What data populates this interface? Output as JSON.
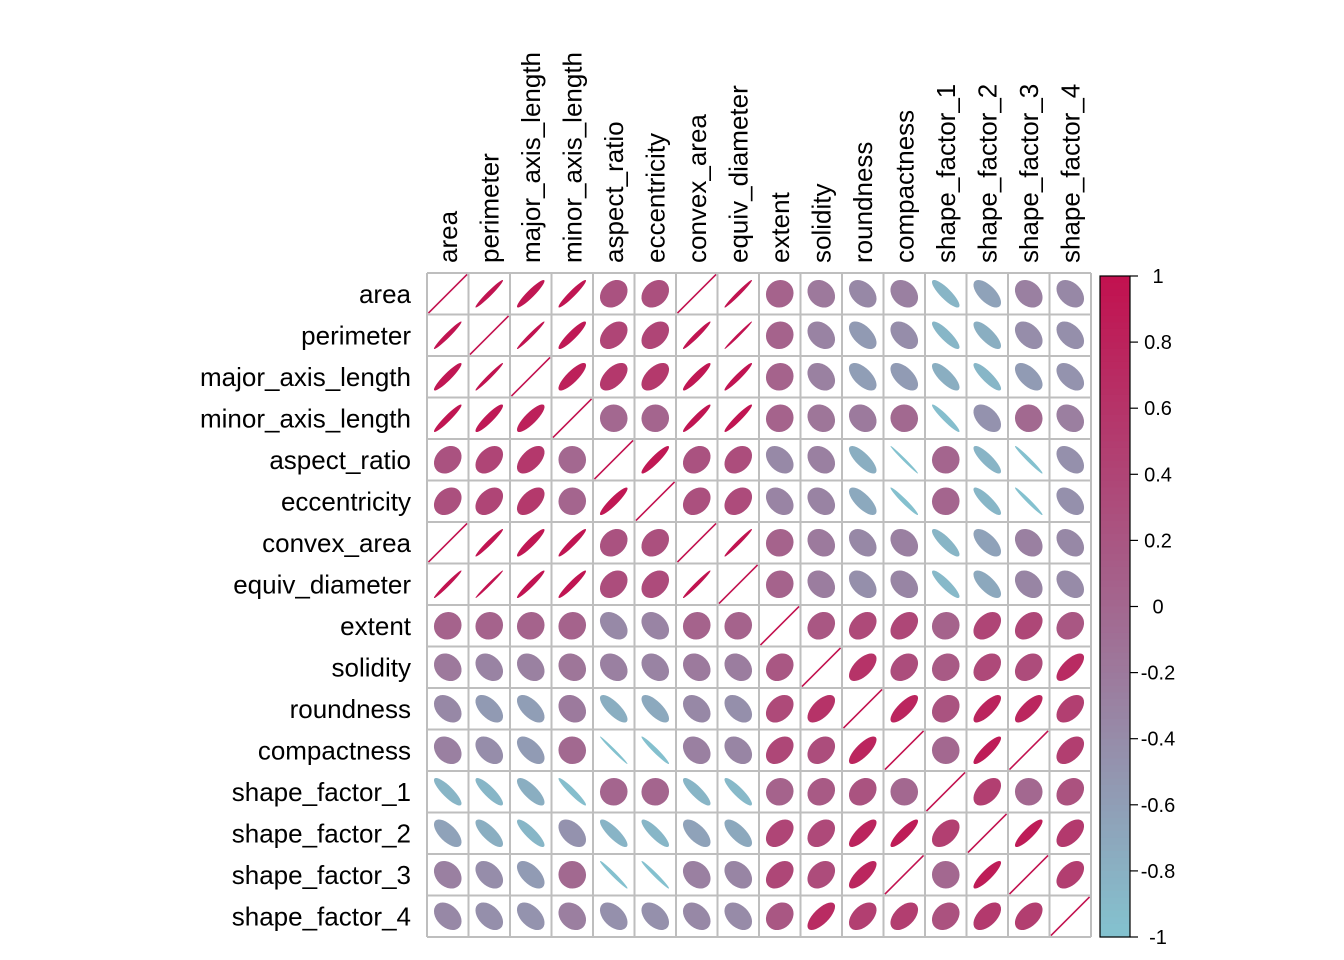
{
  "chart_data": {
    "type": "heatmap",
    "method": "ellipse",
    "variables": [
      "area",
      "perimeter",
      "major_axis_length",
      "minor_axis_length",
      "aspect_ratio",
      "eccentricity",
      "convex_area",
      "equiv_diameter",
      "extent",
      "solidity",
      "roundness",
      "compactness",
      "shape_factor_1",
      "shape_factor_2",
      "shape_factor_3",
      "shape_factor_4"
    ],
    "matrix": [
      [
        1,
        0.97,
        0.93,
        0.95,
        0.24,
        0.27,
        1,
        0.98,
        0.05,
        -0.2,
        -0.36,
        -0.27,
        -0.85,
        -0.64,
        -0.27,
        -0.36
      ],
      [
        0.97,
        1,
        0.98,
        0.91,
        0.39,
        0.39,
        0.97,
        0.99,
        0.05,
        -0.3,
        -0.55,
        -0.41,
        -0.86,
        -0.77,
        -0.41,
        -0.43
      ],
      [
        0.93,
        0.98,
        1,
        0.83,
        0.55,
        0.54,
        0.93,
        0.96,
        0.05,
        -0.28,
        -0.6,
        -0.57,
        -0.77,
        -0.86,
        -0.57,
        -0.48
      ],
      [
        0.95,
        0.91,
        0.83,
        1,
        -0.01,
        0.02,
        0.95,
        0.95,
        0.05,
        -0.16,
        -0.21,
        -0.02,
        -0.95,
        -0.47,
        -0.02,
        -0.26
      ],
      [
        0.24,
        0.39,
        0.55,
        -0.01,
        1,
        0.92,
        0.24,
        0.3,
        -0.37,
        -0.27,
        -0.77,
        -0.99,
        0.02,
        -0.84,
        -0.98,
        -0.45
      ],
      [
        0.27,
        0.39,
        0.54,
        0.02,
        0.92,
        1,
        0.27,
        0.32,
        -0.32,
        -0.3,
        -0.72,
        -0.97,
        0.02,
        -0.86,
        -0.98,
        -0.45
      ],
      [
        1,
        0.97,
        0.93,
        0.95,
        0.24,
        0.27,
        1,
        0.98,
        0.05,
        -0.21,
        -0.36,
        -0.27,
        -0.85,
        -0.64,
        -0.27,
        -0.36
      ],
      [
        0.98,
        0.99,
        0.96,
        0.95,
        0.3,
        0.32,
        0.98,
        1,
        0.05,
        -0.24,
        -0.43,
        -0.33,
        -0.89,
        -0.71,
        -0.33,
        -0.39
      ],
      [
        0.05,
        0.05,
        0.05,
        0.05,
        -0.37,
        -0.32,
        0.05,
        0.05,
        1,
        0.19,
        0.34,
        0.37,
        0.05,
        0.39,
        0.37,
        0.19
      ],
      [
        -0.2,
        -0.3,
        -0.28,
        -0.16,
        -0.27,
        -0.3,
        -0.21,
        -0.24,
        0.19,
        1,
        0.61,
        0.3,
        0.15,
        0.35,
        0.31,
        0.7
      ],
      [
        -0.36,
        -0.55,
        -0.6,
        -0.21,
        -0.77,
        -0.72,
        -0.36,
        -0.43,
        0.34,
        0.61,
        1,
        0.77,
        0.23,
        0.78,
        0.76,
        0.47
      ],
      [
        -0.27,
        -0.41,
        -0.57,
        -0.02,
        -0.99,
        -0.97,
        -0.27,
        -0.33,
        0.37,
        0.3,
        0.77,
        1,
        -0.01,
        0.87,
        1,
        0.48
      ],
      [
        -0.85,
        -0.86,
        -0.77,
        -0.95,
        0.02,
        0.02,
        -0.85,
        -0.89,
        0.05,
        0.15,
        0.23,
        -0.01,
        1,
        0.47,
        -0.01,
        0.25
      ],
      [
        -0.64,
        -0.77,
        -0.86,
        -0.47,
        -0.84,
        -0.86,
        -0.64,
        -0.71,
        0.39,
        0.35,
        0.78,
        0.87,
        0.47,
        1,
        0.87,
        0.53
      ],
      [
        -0.27,
        -0.41,
        -0.57,
        -0.02,
        -0.98,
        -0.98,
        -0.27,
        -0.33,
        0.37,
        0.31,
        0.76,
        1,
        -0.01,
        0.87,
        1,
        0.48
      ],
      [
        -0.36,
        -0.43,
        -0.48,
        -0.26,
        -0.45,
        -0.45,
        -0.36,
        -0.39,
        0.19,
        0.7,
        0.47,
        0.48,
        0.25,
        0.53,
        0.48,
        1
      ]
    ],
    "colorbar": {
      "range": [
        -1,
        1
      ],
      "tick_labels": [
        "-1",
        "-0.8",
        "-0.6",
        "-0.4",
        "-0.2",
        "0",
        "0.2",
        "0.4",
        "0.6",
        "0.8",
        "1"
      ],
      "colors": {
        "low": "#83c3d0",
        "mid": "#a3678f",
        "high": "#c2114f"
      }
    },
    "grid_color": "#bebebe",
    "title": "",
    "xlabel": "",
    "ylabel": ""
  }
}
